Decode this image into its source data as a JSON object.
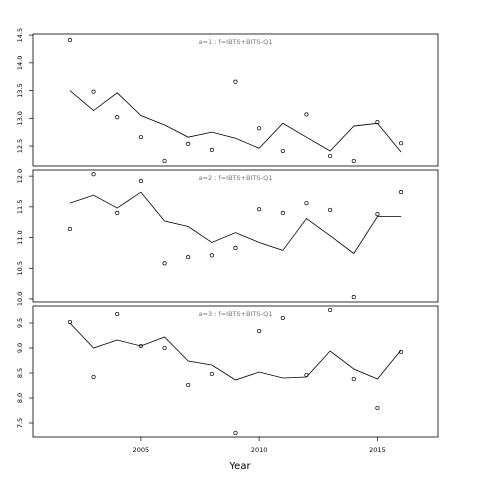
{
  "chart_data": [
    {
      "type": "scatter",
      "title": "a=1 : f=IBTS+BITS-Q1",
      "x": [
        2002,
        2003,
        2004,
        2005,
        2006,
        2007,
        2008,
        2009,
        2010,
        2011,
        2012,
        2013,
        2014,
        2015,
        2016
      ],
      "series": [
        {
          "mode": "points",
          "color": "#000000",
          "values": [
            14.41,
            13.48,
            13.02,
            12.66,
            12.23,
            12.54,
            12.43,
            13.66,
            12.82,
            12.41,
            13.07,
            12.32,
            12.23,
            12.93,
            12.55
          ]
        },
        {
          "mode": "line",
          "color": "#000000",
          "values": [
            13.5,
            13.14,
            13.46,
            13.05,
            12.88,
            12.66,
            12.75,
            12.64,
            12.46,
            12.91,
            12.66,
            12.41,
            12.86,
            12.91,
            12.39
          ]
        }
      ],
      "xlim": [
        2000.44,
        2017.56
      ],
      "ylim": [
        12.14,
        14.52
      ],
      "yticks": [
        12.5,
        {
          "value": 13,
          "label": "13.0"
        },
        13.5,
        {
          "value": 14,
          "label": "14.0"
        },
        14.5
      ]
    },
    {
      "type": "scatter",
      "title": "a=2 : f=IBTS+BITS-Q1",
      "x": [
        2002,
        2003,
        2004,
        2005,
        2006,
        2007,
        2008,
        2009,
        2010,
        2011,
        2012,
        2013,
        2014,
        2015,
        2016
      ],
      "series": [
        {
          "mode": "points",
          "color": "#000000",
          "values": [
            11.14,
            12.03,
            11.4,
            11.92,
            10.58,
            10.68,
            10.71,
            10.83,
            11.46,
            11.4,
            11.56,
            11.45,
            10.03,
            11.38,
            11.74
          ]
        },
        {
          "mode": "line",
          "color": "#000000",
          "values": [
            11.56,
            11.69,
            11.48,
            11.74,
            11.27,
            11.18,
            10.92,
            11.08,
            10.92,
            10.79,
            11.31,
            11.03,
            10.74,
            11.34,
            11.34
          ]
        }
      ],
      "xlim": [
        2000.44,
        2017.56
      ],
      "ylim": [
        9.95,
        12.1
      ],
      "yticks": [
        {
          "value": 10,
          "label": "10.0"
        },
        10.5,
        {
          "value": 11,
          "label": "11.0"
        },
        11.5,
        {
          "value": 12,
          "label": "12.0"
        }
      ]
    },
    {
      "type": "scatter",
      "title": "a=3 : f=IBTS+BITS-Q1",
      "xlabel": "Year",
      "x": [
        2002,
        2003,
        2004,
        2005,
        2006,
        2007,
        2008,
        2009,
        2010,
        2011,
        2012,
        2013,
        2014,
        2015,
        2016
      ],
      "series": [
        {
          "mode": "points",
          "color": "#000000",
          "values": [
            9.52,
            8.42,
            9.68,
            9.04,
            9.0,
            8.26,
            8.48,
            7.3,
            9.34,
            9.6,
            8.46,
            9.76,
            8.38,
            7.8,
            8.92
          ]
        },
        {
          "mode": "line",
          "color": "#000000",
          "values": [
            9.5,
            9.0,
            9.16,
            9.04,
            9.22,
            8.74,
            8.66,
            8.36,
            8.52,
            8.4,
            8.42,
            8.94,
            8.58,
            8.38,
            8.96
          ]
        }
      ],
      "xlim": [
        2000.44,
        2017.56
      ],
      "ylim": [
        7.22,
        9.84
      ],
      "xticks": [
        2005,
        2010,
        2015
      ],
      "yticks": [
        7.5,
        {
          "value": 8,
          "label": "8.0"
        },
        8.5,
        {
          "value": 9,
          "label": "9.0"
        },
        9.5
      ]
    }
  ]
}
